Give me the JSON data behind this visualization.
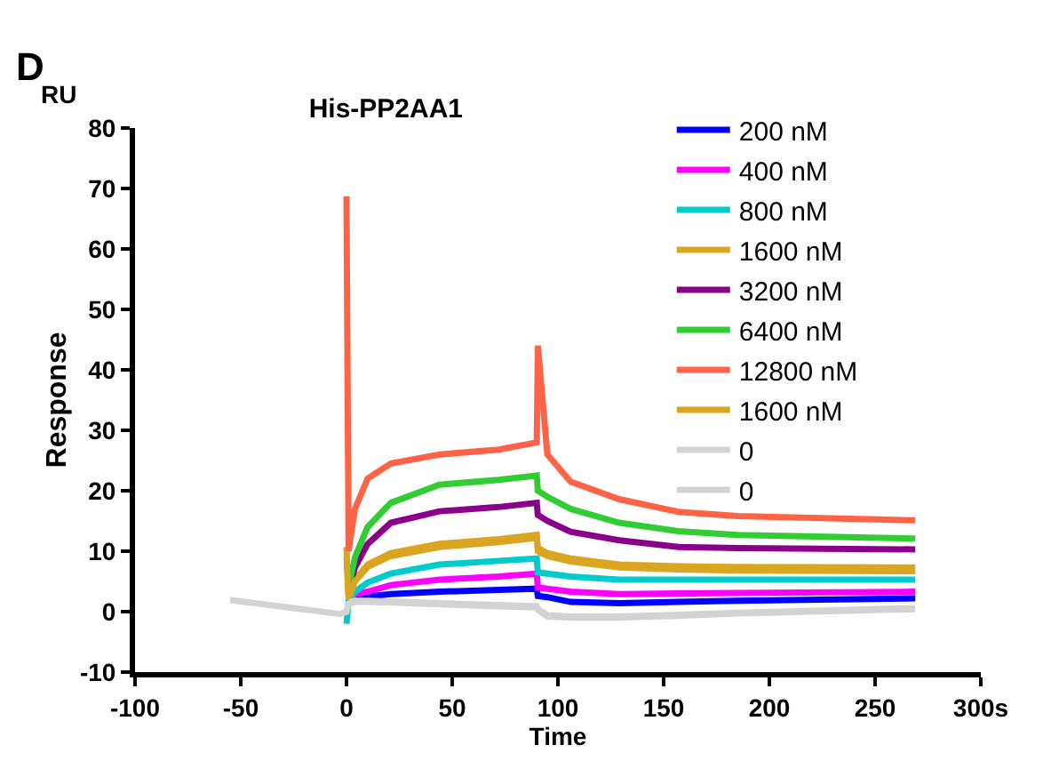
{
  "chart_data": {
    "type": "line",
    "title": "His-PP2AA1",
    "xlabel": "Time",
    "ylabel": "Response",
    "annotations": [
      "D",
      "RU"
    ],
    "x": [
      -55,
      -30,
      -3,
      0,
      1,
      4,
      10,
      21,
      44,
      72,
      90,
      90.5,
      95,
      106,
      129,
      157,
      185,
      269
    ],
    "series": [
      {
        "name": "200 nM",
        "color": "#0000ff",
        "values": [
          null,
          null,
          null,
          null,
          1.5,
          2.2,
          2.5,
          2.9,
          3.3,
          3.6,
          3.8,
          2.6,
          2.4,
          1.6,
          1.4,
          1.6,
          1.8,
          2.2
        ]
      },
      {
        "name": "400 nM",
        "color": "#ff00ff",
        "values": [
          null,
          null,
          null,
          null,
          1.8,
          2.9,
          3.3,
          4.4,
          5.3,
          5.8,
          6.3,
          4,
          3.8,
          3.3,
          2.9,
          3,
          3.1,
          3.3
        ]
      },
      {
        "name": "800 nM",
        "color": "#00cccc",
        "values": [
          null,
          null,
          null,
          -2,
          1.8,
          3.3,
          4.8,
          6.3,
          7.8,
          8.4,
          8.8,
          6.5,
          6.3,
          5.8,
          5.3,
          5.3,
          5.3,
          5.3
        ]
      },
      {
        "name": "1600 nM",
        "color": "#daa520",
        "values": [
          null,
          null,
          null,
          10.7,
          2.5,
          5.3,
          7.8,
          9.7,
          11.2,
          12,
          12.7,
          10.5,
          9.7,
          8.8,
          7.8,
          7.5,
          7.4,
          7.3
        ]
      },
      {
        "name": "3200 nM",
        "color": "#8b008b",
        "values": [
          null,
          null,
          null,
          null,
          3.5,
          7.3,
          11.2,
          14.7,
          16.6,
          17.3,
          18,
          16,
          15,
          13.2,
          11.8,
          10.7,
          10.5,
          10.3
        ]
      },
      {
        "name": "6400 nM",
        "color": "#32cd32",
        "values": [
          null,
          null,
          null,
          null,
          4,
          9,
          14,
          18,
          21,
          21.8,
          22.5,
          20,
          19,
          17,
          14.7,
          13.3,
          12.7,
          12.1
        ]
      },
      {
        "name": "12800 nM",
        "color": "#ff6347",
        "values": [
          null,
          null,
          null,
          68.7,
          10,
          17,
          22,
          24.5,
          26,
          26.8,
          28,
          44,
          26,
          21.5,
          18.6,
          16.5,
          15.8,
          15.1
        ]
      },
      {
        "name": "1600 nM",
        "color": "#daa520",
        "values": [
          null,
          null,
          null,
          9,
          2.2,
          5,
          7.4,
          9.2,
          10.7,
          11.5,
          12.2,
          10,
          9.2,
          8.3,
          7.3,
          7,
          6.8,
          6.7
        ]
      },
      {
        "name": "0",
        "color": "#d3d3d3",
        "values": [
          null,
          null,
          null,
          null,
          1.5,
          1.8,
          1.8,
          1.7,
          1.4,
          1.1,
          0.9,
          0.5,
          -0.6,
          -0.8,
          -0.8,
          -0.5,
          -0.2,
          0.6
        ]
      },
      {
        "name": "0",
        "color": "#d3d3d3",
        "values": [
          1.9,
          0.8,
          -0.4,
          0,
          1.3,
          1.6,
          1.6,
          1.5,
          1.2,
          0.9,
          0.7,
          0.3,
          -0.8,
          -1,
          -1,
          -0.7,
          -0.3,
          0.4
        ]
      }
    ],
    "xlim": [
      -100,
      300
    ],
    "xticks": [
      -100,
      -50,
      0,
      50,
      100,
      150,
      200,
      250,
      {
        "value": 300,
        "label": "300s"
      }
    ],
    "ylim": [
      -10,
      80
    ],
    "yticks": [
      -10,
      0,
      10,
      20,
      30,
      40,
      50,
      60,
      70,
      80
    ],
    "legend": "top right",
    "marker": "none",
    "line_style": "solid"
  }
}
